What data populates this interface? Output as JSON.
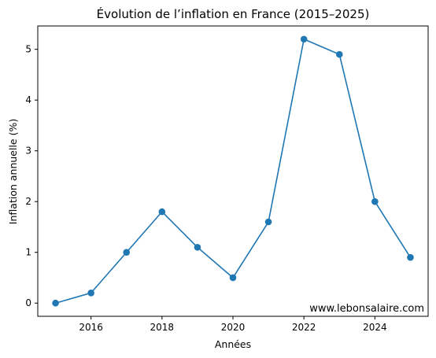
{
  "chart_data": {
    "type": "line",
    "title": "Évolution de l’inflation en France (2015–2025)",
    "xlabel": "Années",
    "ylabel": "Inflation annuelle (%)",
    "x": [
      2015,
      2016,
      2017,
      2018,
      2019,
      2020,
      2021,
      2022,
      2023,
      2024,
      2025
    ],
    "series": [
      {
        "values": [
          0.0,
          0.2,
          1.0,
          1.8,
          1.1,
          0.5,
          1.6,
          5.2,
          4.9,
          2.0,
          0.9
        ]
      }
    ],
    "xlim": [
      2014.5,
      2025.5
    ],
    "ylim": [
      -0.26,
      5.46
    ],
    "xticks": [
      "2016",
      "2018",
      "2020",
      "2022",
      "2024"
    ],
    "yticks": [
      "0",
      "1",
      "2",
      "3",
      "4",
      "5"
    ],
    "grid": false,
    "legend": "none",
    "line_color": "#1f77b4",
    "annotation": "www.lebonsalaire.com"
  }
}
